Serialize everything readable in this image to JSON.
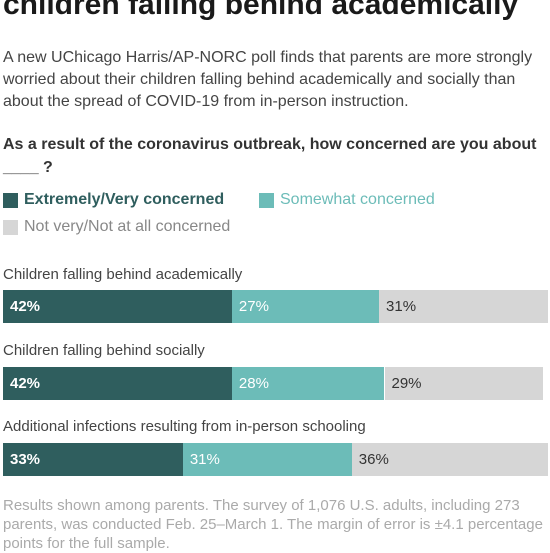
{
  "headline": "children falling behind academically",
  "intro": "A new UChicago Harris/AP-NORC poll finds that parents are more strongly worried about their children falling behind academically and socially than about the spread of COVID-19 from in-person instruction.",
  "question": "As a result of the coronavirus outbreak, how concerned are you about ____ ?",
  "colors": {
    "extremely": "#2f5e5e",
    "somewhat": "#6cbcb8",
    "not": "#d6d6d6"
  },
  "chart_data": {
    "type": "bar",
    "orientation": "horizontal",
    "stacked": true,
    "categories": [
      "Children falling behind academically",
      "Children falling behind socially",
      "Additional infections resulting from in-person schooling"
    ],
    "series": [
      {
        "name": "Extremely/Very concerned",
        "values": [
          42,
          42,
          33
        ],
        "labels": [
          "42%",
          "42%",
          "33%"
        ]
      },
      {
        "name": "Somewhat concerned",
        "values": [
          27,
          28,
          31
        ],
        "labels": [
          "27%",
          "28%",
          "31%"
        ]
      },
      {
        "name": "Not very/Not at all concerned",
        "values": [
          31,
          29,
          36
        ],
        "labels": [
          "31%",
          "29%",
          "36%"
        ]
      }
    ],
    "xlim": [
      0,
      100
    ],
    "grid": false,
    "legend": "top"
  },
  "footnote": "Results shown among parents. The survey of 1,076 U.S. adults, including 273 parents, was conducted Feb. 25–March 1. The margin of error is ±4.1 percentage points for the full sample."
}
